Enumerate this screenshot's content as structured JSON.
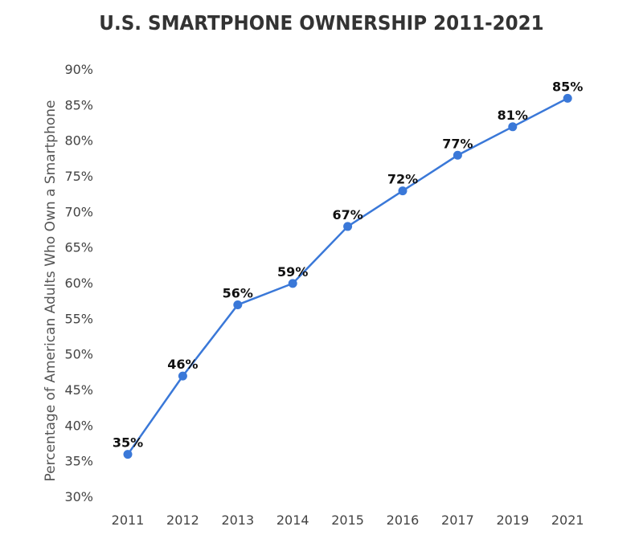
{
  "chart_data": {
    "type": "line",
    "title": "U.S. SMARTPHONE OWNERSHIP 2011-2021",
    "xlabel": "",
    "ylabel": "Percentage of American Adults Who Own a Smartphone",
    "categories": [
      "2011",
      "2012",
      "2013",
      "2014",
      "2015",
      "2016",
      "2017",
      "2019",
      "2021"
    ],
    "values": [
      35,
      46,
      56,
      59,
      67,
      72,
      77,
      81,
      85
    ],
    "data_labels": [
      "35%",
      "46%",
      "56%",
      "59%",
      "67%",
      "72%",
      "77%",
      "81%",
      "85%"
    ],
    "ylim": [
      30,
      90
    ],
    "yticks": [
      "30%",
      "35%",
      "40%",
      "45%",
      "50%",
      "55%",
      "60%",
      "65%",
      "70%",
      "75%",
      "80%",
      "85%",
      "90%"
    ],
    "grid": false,
    "color": "#3a78d8"
  }
}
